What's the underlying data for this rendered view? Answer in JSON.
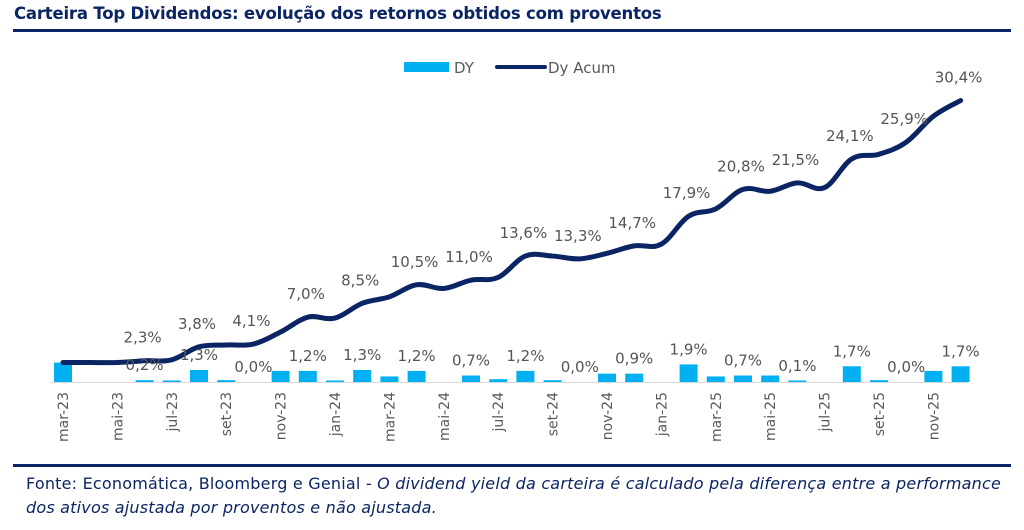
{
  "header": {
    "title": "Carteira Top Dividendos: evolução dos retornos obtidos com proventos"
  },
  "footer": {
    "source": "Fonte: Economática, Bloomberg e Genial - ",
    "note": "O dividend yield da carteira é calculado pela diferença entre a performance dos ativos ajustada por proventos e não ajustada."
  },
  "colors": {
    "bar": "#00b0f0",
    "line": "#0b2463",
    "title": "#0b2463",
    "axis": "#d9d9d9"
  },
  "chart_data": {
    "type": "bar+line",
    "title": "Carteira Top Dividendos: evolução dos retornos obtidos com proventos",
    "xlabel": "",
    "ylabel": "",
    "ylim": [
      0,
      32
    ],
    "grid": false,
    "legend_position": "top-center",
    "legend": [
      "DY",
      "Dy Acum"
    ],
    "categories": [
      "mar-23",
      "abr-23",
      "mai-23",
      "jun-23",
      "jul-23",
      "ago-23",
      "set-23",
      "out-23",
      "nov-23",
      "dez-23",
      "jan-24",
      "fev-24",
      "mar-24",
      "abr-24",
      "mai-24",
      "jun-24",
      "jul-24",
      "ago-24",
      "set-24",
      "out-24",
      "nov-24",
      "dez-24",
      "jan-25",
      "fev-25",
      "mar-25",
      "abr-25",
      "mai-25",
      "jun-25",
      "jul-25",
      "ago-25",
      "set-25",
      "out-25",
      "nov-25",
      "dez-25"
    ],
    "tick_labels": [
      "mar-23",
      "mai-23",
      "jul-23",
      "set-23",
      "nov-23",
      "jan-24",
      "mar-24",
      "mai-24",
      "jul-24",
      "set-24",
      "nov-24",
      "jan-25",
      "mar-25",
      "mai-25",
      "jul-25",
      "set-25",
      "nov-25"
    ],
    "series": [
      {
        "name": "DY",
        "type": "bar",
        "values": [
          2.1,
          0.0,
          0.0,
          0.2,
          0.1,
          1.3,
          0.2,
          0.0,
          1.2,
          1.2,
          0.1,
          1.3,
          0.6,
          1.2,
          0.0,
          0.7,
          0.3,
          1.2,
          0.2,
          0.0,
          0.9,
          0.9,
          0.0,
          1.9,
          0.6,
          0.7,
          0.7,
          0.1,
          0.0,
          1.7,
          0.2,
          0.0,
          1.2,
          1.7
        ],
        "data_labels": [
          {
            "index": 3,
            "text": "0,2%"
          },
          {
            "index": 5,
            "text": "1,3%"
          },
          {
            "index": 7,
            "text": "0,0%"
          },
          {
            "index": 9,
            "text": "1,2%"
          },
          {
            "index": 11,
            "text": "1,3%"
          },
          {
            "index": 13,
            "text": "1,2%"
          },
          {
            "index": 15,
            "text": "0,7%"
          },
          {
            "index": 17,
            "text": "1,2%"
          },
          {
            "index": 19,
            "text": "0,0%"
          },
          {
            "index": 21,
            "text": "0,9%"
          },
          {
            "index": 23,
            "text": "1,9%"
          },
          {
            "index": 25,
            "text": "0,7%"
          },
          {
            "index": 27,
            "text": "0,1%"
          },
          {
            "index": 29,
            "text": "1,7%"
          },
          {
            "index": 31,
            "text": "0,0%"
          },
          {
            "index": 33,
            "text": "1,7%"
          }
        ]
      },
      {
        "name": "Dy Acum",
        "type": "line",
        "values": [
          2.1,
          2.1,
          2.1,
          2.3,
          2.4,
          3.8,
          4.0,
          4.1,
          5.4,
          7.0,
          6.9,
          8.5,
          9.2,
          10.5,
          10.1,
          11.0,
          11.3,
          13.6,
          13.6,
          13.3,
          13.9,
          14.7,
          14.9,
          17.9,
          18.7,
          20.8,
          20.6,
          21.5,
          21.0,
          24.1,
          24.6,
          25.9,
          28.7,
          30.4
        ],
        "data_labels": [
          {
            "index": 3,
            "text": "2,3%"
          },
          {
            "index": 5,
            "text": "3,8%"
          },
          {
            "index": 7,
            "text": "4,1%"
          },
          {
            "index": 9,
            "text": "7,0%"
          },
          {
            "index": 11,
            "text": "8,5%"
          },
          {
            "index": 13,
            "text": "10,5%"
          },
          {
            "index": 15,
            "text": "11,0%"
          },
          {
            "index": 17,
            "text": "13,6%"
          },
          {
            "index": 19,
            "text": "13,3%"
          },
          {
            "index": 21,
            "text": "14,7%"
          },
          {
            "index": 23,
            "text": "17,9%"
          },
          {
            "index": 25,
            "text": "20,8%"
          },
          {
            "index": 27,
            "text": "21,5%"
          },
          {
            "index": 29,
            "text": "24,1%"
          },
          {
            "index": 31,
            "text": "25,9%"
          },
          {
            "index": 33,
            "text": "30,4%"
          }
        ]
      }
    ]
  }
}
